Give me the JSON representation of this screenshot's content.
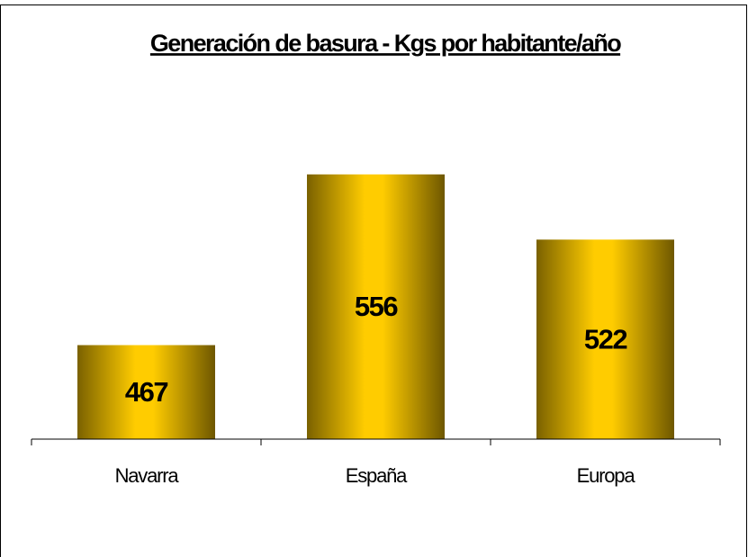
{
  "chart_data": {
    "type": "bar",
    "title": "Generación de basura - Kgs por habitante/año",
    "categories": [
      "Navarra",
      "España",
      "Europa"
    ],
    "values": [
      467,
      556,
      522
    ],
    "color": "#ffcc00",
    "ylim": [
      418,
      600
    ]
  }
}
